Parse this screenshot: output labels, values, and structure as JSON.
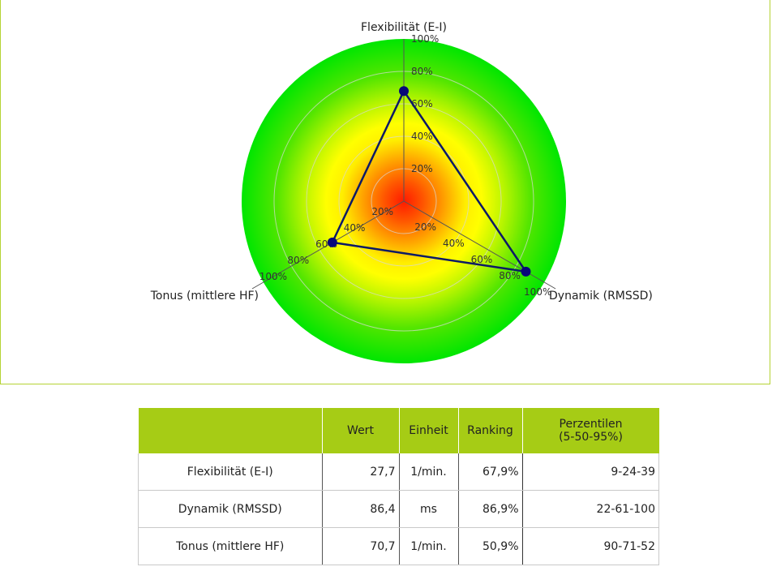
{
  "chart_data": {
    "type": "radar",
    "axes": [
      "Flexibilität (E-I)",
      "Dynamik (RMSSD)",
      "Tonus (mittlere HF)"
    ],
    "tick_labels": [
      "20%",
      "40%",
      "60%",
      "80%",
      "100%"
    ],
    "range": [
      0,
      100
    ],
    "series": [
      {
        "values": [
          67.9,
          86.9,
          50.9
        ]
      }
    ],
    "colors": {
      "center": "#ff1a00",
      "mid": "#ffff00",
      "outer": "#00e600",
      "line": "#0d1a66",
      "marker": "#08087a",
      "grid": "#d8d8d8"
    }
  },
  "table": {
    "headers": [
      "",
      "Wert",
      "Einheit",
      "Ranking",
      "Perzentilen\n(5-50-95%)"
    ],
    "rows": [
      {
        "label": "Flexibilität (E-I)",
        "wert": "27,7",
        "einheit": "1/min.",
        "ranking": "67,9%",
        "perzentilen": "9-24-39"
      },
      {
        "label": "Dynamik (RMSSD)",
        "wert": "86,4",
        "einheit": "ms",
        "ranking": "86,9%",
        "perzentilen": "22-61-100"
      },
      {
        "label": "Tonus (mittlere HF)",
        "wert": "70,7",
        "einheit": "1/min.",
        "ranking": "50,9%",
        "perzentilen": "90-71-52"
      }
    ]
  }
}
